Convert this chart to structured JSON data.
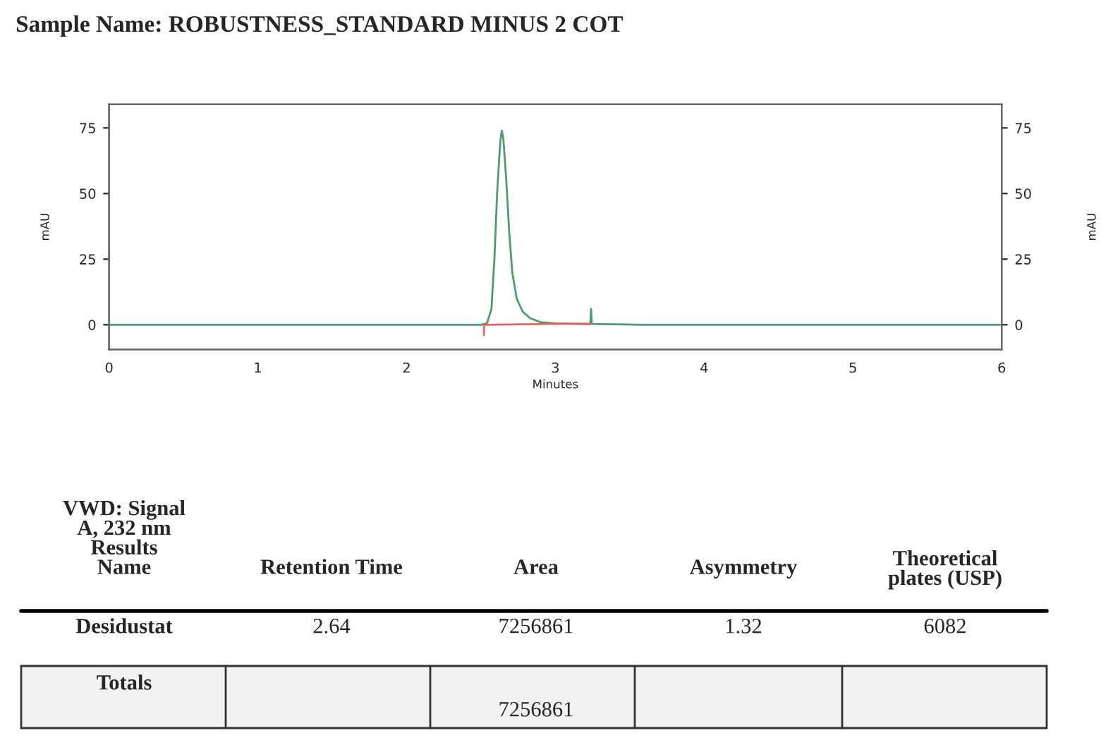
{
  "chart_data": {
    "type": "line",
    "title": "Sample Name: ROBUSTNESS_STANDARD MINUS 2 COT",
    "xlabel": "Minutes",
    "ylabel": "mAU",
    "y2label": "mAU",
    "series": [
      {
        "color": "#4f9a6e",
        "x": [
          0,
          2.5,
          2.54,
          2.57,
          2.59,
          2.61,
          2.63,
          2.64,
          2.65,
          2.67,
          2.69,
          2.71,
          2.74,
          2.78,
          2.83,
          2.9,
          3.0,
          3.2,
          3.235,
          3.24,
          3.245,
          3.6,
          6
        ],
        "values": [
          0,
          0,
          0.5,
          6,
          25,
          52,
          70,
          74,
          71,
          55,
          35,
          20,
          10,
          5,
          2.5,
          1,
          0.5,
          0.3,
          0.3,
          6,
          0.3,
          0,
          0
        ]
      },
      {
        "color": "#e06666",
        "x": [
          2.52,
          2.52,
          3.0,
          3.24
        ],
        "values": [
          -4,
          0,
          0.3,
          0.3
        ]
      }
    ],
    "xlim": [
      0,
      6
    ],
    "xticks": [
      0,
      1,
      2,
      3,
      4,
      5,
      6
    ],
    "ylim": [
      -9.4,
      84
    ],
    "yticks": [
      0,
      25,
      50,
      75
    ],
    "y2lim": [
      -9.4,
      84
    ],
    "y2ticks": [
      0,
      25,
      50,
      75
    ],
    "grid": false,
    "legend": false,
    "annotations": [
      "VWD: Signal\nA, 232 nm\nResults\nName",
      "Retention Time",
      "Area",
      "Asymmetry",
      "Theoretical\nplates (USP)",
      "Desidustat",
      "2.64",
      "7256861",
      "1.32",
      "6082",
      "Totals",
      "7256861"
    ]
  }
}
